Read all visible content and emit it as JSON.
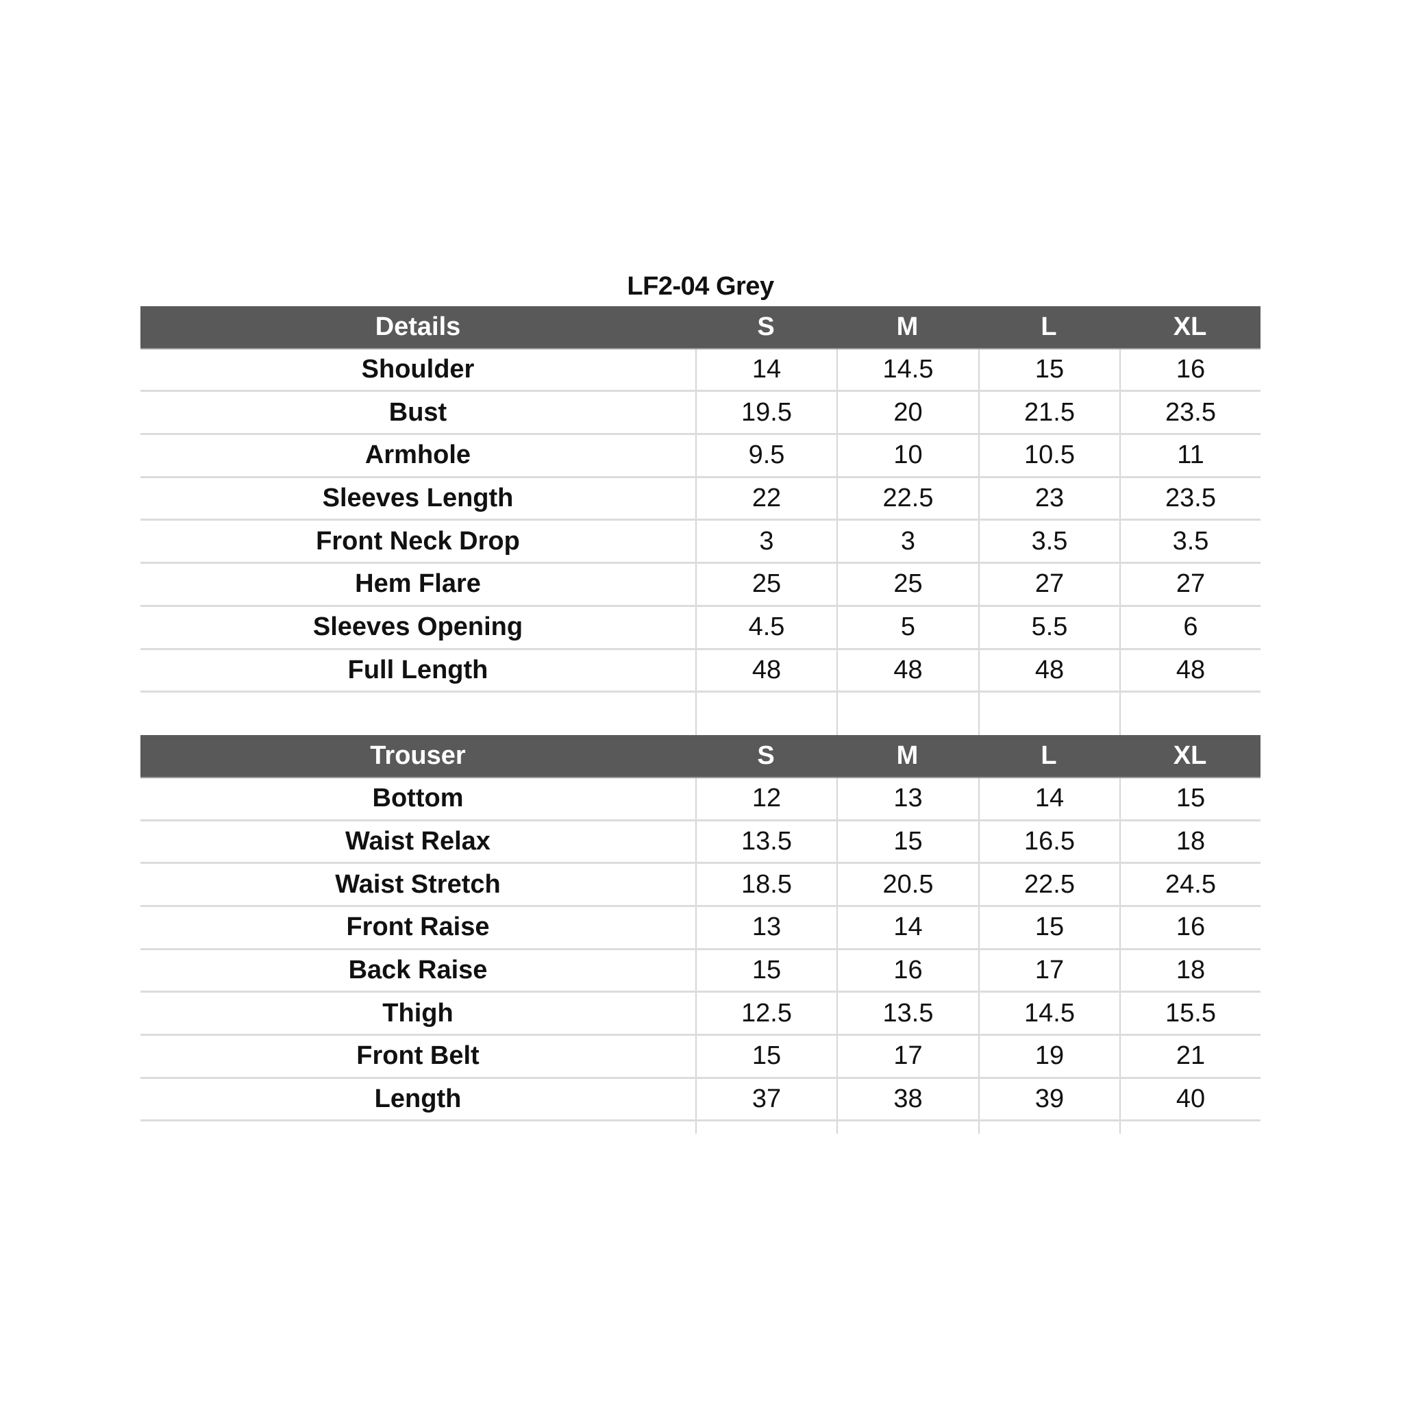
{
  "title": "LF2-04 Grey",
  "colors": {
    "header_bg": "#595959",
    "header_text": "#ffffff",
    "grid": "#dcdcdc"
  },
  "sections": [
    {
      "header": [
        "Details",
        "S",
        "M",
        "L",
        "XL"
      ],
      "rows": [
        [
          "Shoulder",
          "14",
          "14.5",
          "15",
          "16"
        ],
        [
          "Bust",
          "19.5",
          "20",
          "21.5",
          "23.5"
        ],
        [
          "Armhole",
          "9.5",
          "10",
          "10.5",
          "11"
        ],
        [
          "Sleeves Length",
          "22",
          "22.5",
          "23",
          "23.5"
        ],
        [
          "Front Neck Drop",
          "3",
          "3",
          "3.5",
          "3.5"
        ],
        [
          "Hem Flare",
          "25",
          "25",
          "27",
          "27"
        ],
        [
          "Sleeves Opening",
          "4.5",
          "5",
          "5.5",
          "6"
        ],
        [
          "Full Length",
          "48",
          "48",
          "48",
          "48"
        ]
      ]
    },
    {
      "header": [
        "Trouser",
        "S",
        "M",
        "L",
        "XL"
      ],
      "rows": [
        [
          "Bottom",
          "12",
          "13",
          "14",
          "15"
        ],
        [
          "Waist Relax",
          "13.5",
          "15",
          "16.5",
          "18"
        ],
        [
          "Waist Stretch",
          "18.5",
          "20.5",
          "22.5",
          "24.5"
        ],
        [
          "Front Raise",
          "13",
          "14",
          "15",
          "16"
        ],
        [
          "Back Raise",
          "15",
          "16",
          "17",
          "18"
        ],
        [
          "Thigh",
          "12.5",
          "13.5",
          "14.5",
          "15.5"
        ],
        [
          "Front Belt",
          "15",
          "17",
          "19",
          "21"
        ],
        [
          "Length",
          "37",
          "38",
          "39",
          "40"
        ]
      ]
    }
  ]
}
